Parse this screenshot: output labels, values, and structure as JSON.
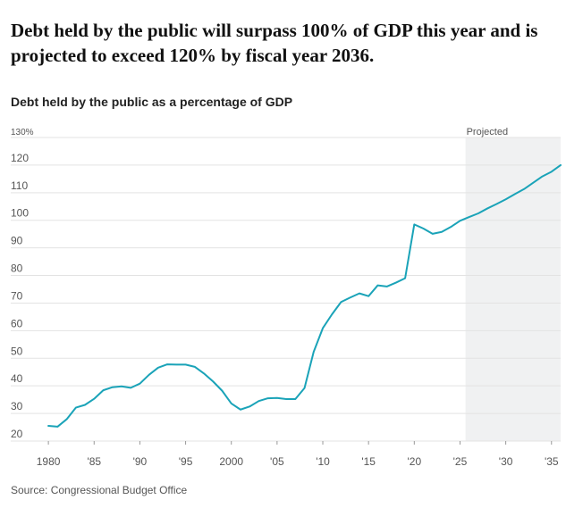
{
  "headline": "Debt held by the public will surpass 100% of GDP this year and is projected to exceed 120% by fiscal year 2036.",
  "subtitle": "Debt held by the public as a percentage of GDP",
  "source": "Source: Congressional Budget Office",
  "colors": {
    "line": "#1aa3b8",
    "projected_band": "#f0f1f2",
    "grid": "#e3e3e3",
    "axis_text": "#555555"
  },
  "chart_data": {
    "type": "line",
    "title": "Debt held by the public as a percentage of GDP",
    "xlabel": "",
    "ylabel": "",
    "xlim": [
      1979.5,
      2036
    ],
    "ylim": [
      20,
      130
    ],
    "grid": true,
    "projected_label": "Projected",
    "projected_range": [
      2025.6,
      2036
    ],
    "y_ticks": [
      {
        "value": 130,
        "label": "130%"
      },
      {
        "value": 120,
        "label": "120"
      },
      {
        "value": 110,
        "label": "110"
      },
      {
        "value": 100,
        "label": "100"
      },
      {
        "value": 90,
        "label": "90"
      },
      {
        "value": 80,
        "label": "80"
      },
      {
        "value": 70,
        "label": "70"
      },
      {
        "value": 60,
        "label": "60"
      },
      {
        "value": 50,
        "label": "50"
      },
      {
        "value": 40,
        "label": "40"
      },
      {
        "value": 30,
        "label": "30"
      },
      {
        "value": 20,
        "label": "20"
      }
    ],
    "x_ticks": [
      {
        "value": 1980,
        "label": "1980"
      },
      {
        "value": 1985,
        "label": "'85"
      },
      {
        "value": 1990,
        "label": "'90"
      },
      {
        "value": 1995,
        "label": "'95"
      },
      {
        "value": 2000,
        "label": "2000"
      },
      {
        "value": 2005,
        "label": "'05"
      },
      {
        "value": 2010,
        "label": "'10"
      },
      {
        "value": 2015,
        "label": "'15"
      },
      {
        "value": 2020,
        "label": "'20"
      },
      {
        "value": 2025,
        "label": "'25"
      },
      {
        "value": 2030,
        "label": "'30"
      },
      {
        "value": 2035,
        "label": "'35"
      }
    ],
    "series": [
      {
        "name": "Debt held by the public (% of GDP)",
        "x": [
          1980,
          1981,
          1982,
          1983,
          1984,
          1985,
          1986,
          1987,
          1988,
          1989,
          1990,
          1991,
          1992,
          1993,
          1994,
          1995,
          1996,
          1997,
          1998,
          1999,
          2000,
          2001,
          2002,
          2003,
          2004,
          2005,
          2006,
          2007,
          2008,
          2009,
          2010,
          2011,
          2012,
          2013,
          2014,
          2015,
          2016,
          2017,
          2018,
          2019,
          2020,
          2021,
          2022,
          2023,
          2024,
          2025,
          2026,
          2027,
          2028,
          2029,
          2030,
          2031,
          2032,
          2033,
          2034,
          2035,
          2036
        ],
        "values": [
          25.5,
          25.2,
          27.9,
          32.1,
          33.1,
          35.3,
          38.4,
          39.5,
          39.8,
          39.3,
          40.8,
          44.0,
          46.6,
          47.8,
          47.7,
          47.7,
          46.9,
          44.5,
          41.6,
          38.2,
          33.6,
          31.4,
          32.5,
          34.5,
          35.5,
          35.6,
          35.2,
          35.2,
          39.2,
          52.3,
          60.9,
          65.9,
          70.4,
          72.0,
          73.5,
          72.5,
          76.4,
          76.0,
          77.4,
          79.0,
          98.5,
          97.0,
          95.1,
          95.8,
          97.6,
          99.8,
          101.2,
          102.5,
          104.3,
          105.9,
          107.6,
          109.5,
          111.3,
          113.6,
          115.9,
          117.6,
          120.0
        ]
      }
    ]
  }
}
